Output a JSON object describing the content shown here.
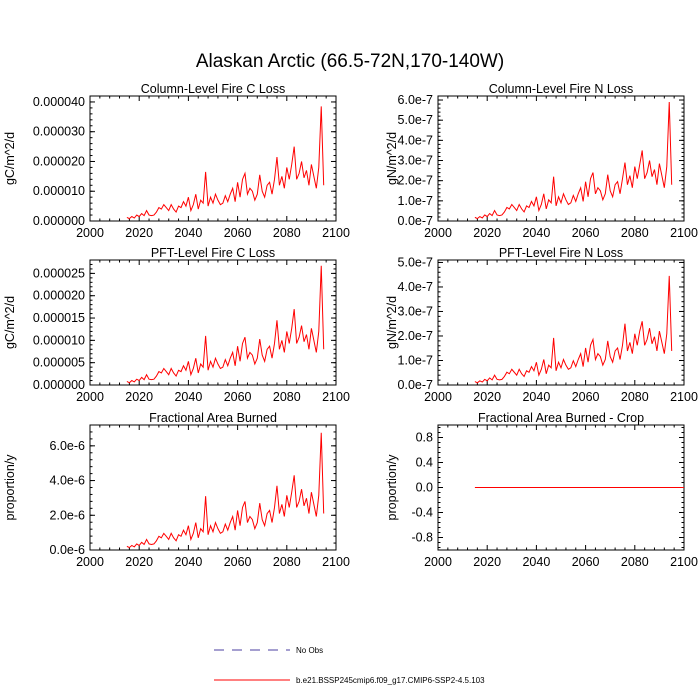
{
  "figure": {
    "title": "Alaskan Arctic (66.5-72N,170-140W)"
  },
  "colors": {
    "model": "#ff0000",
    "obs": "#4b3fa0",
    "axis": "#000000"
  },
  "legend": [
    {
      "label": "No Obs",
      "style": "dashed",
      "color": "#4b3fa0"
    },
    {
      "label": "b.e21.BSSP245cmip6.f09_g17.CMIP6-SSP2-4.5.103",
      "style": "solid",
      "color": "#ff0000"
    }
  ],
  "chart_data": [
    {
      "type": "line",
      "title": "Column-Level Fire C Loss",
      "ylabel": "gC/m^2/d",
      "xlim": [
        2000,
        2100
      ],
      "ylim": [
        0,
        4.2e-05
      ],
      "x_ticks": [
        "2000",
        "2020",
        "2040",
        "2060",
        "2080",
        "2100"
      ],
      "y_ticks": [
        {
          "value": 0,
          "label": "0.000000"
        },
        {
          "value": 1e-05,
          "label": "0.000010"
        },
        {
          "value": 2e-05,
          "label": "0.000020"
        },
        {
          "value": 3e-05,
          "label": "0.000030"
        },
        {
          "value": 4e-05,
          "label": "0.000040"
        }
      ],
      "series": [
        {
          "name": "b.e21.BSSP245cmip6.f09_g17.CMIP6-SSP2-4.5.103",
          "x_start": 2015,
          "x_step": 1,
          "values": [
            1.2e-06,
            8e-07,
            1.5e-06,
            1e-06,
            2e-06,
            1.5e-06,
            2.5e-06,
            1.8e-06,
            3.5e-06,
            2e-06,
            1.8e-06,
            2e-06,
            3e-06,
            4.5e-06,
            4e-06,
            5.5e-06,
            4.5e-06,
            3.5e-06,
            5.5e-06,
            4e-06,
            3e-06,
            5e-06,
            4.5e-06,
            6.5e-06,
            5e-06,
            8e-06,
            3.5e-06,
            5.5e-06,
            9e-06,
            4e-06,
            7e-06,
            6e-06,
            1.65e-05,
            5e-06,
            8e-06,
            6e-06,
            9e-06,
            7e-06,
            5.5e-06,
            6e-06,
            8.5e-06,
            6.5e-06,
            9e-06,
            1.1e-05,
            6.5e-06,
            1.3e-05,
            8e-06,
            1.4e-05,
            1.6e-05,
            9e-06,
            1.1e-05,
            1e-05,
            7e-06,
            9e-06,
            1.55e-05,
            1e-05,
            8e-06,
            1.2e-05,
            1.3e-05,
            9e-06,
            1.4e-05,
            2.15e-05,
            1.2e-05,
            1.5e-05,
            1.1e-05,
            1.8e-05,
            1.4e-05,
            1.9e-05,
            2.5e-05,
            1.4e-05,
            1.6e-05,
            2e-05,
            1.45e-05,
            1.7e-05,
            1.2e-05,
            1.9e-05,
            1.5e-05,
            1.1e-05,
            1.8e-05,
            3.85e-05,
            1.2e-05
          ]
        }
      ]
    },
    {
      "type": "line",
      "title": "Column-Level Fire N Loss",
      "ylabel": "gN/m^2/d",
      "xlim": [
        2000,
        2100
      ],
      "ylim": [
        0,
        6.2e-07
      ],
      "x_ticks": [
        "2000",
        "2020",
        "2040",
        "2060",
        "2080",
        "2100"
      ],
      "y_ticks": [
        {
          "value": 0,
          "label": "0.0e-7"
        },
        {
          "value": 1e-07,
          "label": "1.0e-7"
        },
        {
          "value": 2e-07,
          "label": "2.0e-7"
        },
        {
          "value": 3e-07,
          "label": "3.0e-7"
        },
        {
          "value": 4e-07,
          "label": "4.0e-7"
        },
        {
          "value": 5e-07,
          "label": "5.0e-7"
        },
        {
          "value": 6e-07,
          "label": "6.0e-7"
        }
      ],
      "series": [
        {
          "name": "b.e21.BSSP245cmip6.f09_g17.CMIP6-SSP2-4.5.103",
          "x_start": 2015,
          "x_step": 1,
          "values": [
            1.8e-08,
            1.2e-08,
            2.2e-08,
            1.5e-08,
            3e-08,
            2.2e-08,
            3.7e-08,
            2.7e-08,
            5.2e-08,
            3e-08,
            2.7e-08,
            3e-08,
            4.5e-08,
            6.7e-08,
            6e-08,
            8.2e-08,
            6.7e-08,
            5.2e-08,
            8.2e-08,
            6e-08,
            4.5e-08,
            7.5e-08,
            6.7e-08,
            9.7e-08,
            7.5e-08,
            1.2e-07,
            5.2e-08,
            8.2e-08,
            1.35e-07,
            6e-08,
            1.05e-07,
            9e-08,
            2.2e-07,
            7.5e-08,
            1.2e-07,
            9e-08,
            1.35e-07,
            1.05e-07,
            8.2e-08,
            9e-08,
            1.27e-07,
            9.7e-08,
            1.35e-07,
            1.65e-07,
            9.7e-08,
            1.95e-07,
            1.2e-07,
            2.1e-07,
            2.4e-07,
            1.35e-07,
            1.65e-07,
            1.5e-07,
            1.05e-07,
            1.35e-07,
            2.3e-07,
            1.5e-07,
            1.2e-07,
            1.8e-07,
            1.95e-07,
            1.35e-07,
            2.1e-07,
            2.9e-07,
            1.8e-07,
            2.25e-07,
            1.65e-07,
            2.7e-07,
            2.1e-07,
            2.8e-07,
            3.5e-07,
            2.1e-07,
            2.4e-07,
            3e-07,
            2.2e-07,
            2.55e-07,
            1.8e-07,
            2.85e-07,
            2.25e-07,
            1.65e-07,
            2.7e-07,
            5.9e-07,
            1.8e-07
          ]
        }
      ]
    },
    {
      "type": "line",
      "title": "PFT-Level Fire C Loss",
      "ylabel": "gC/m^2/d",
      "xlim": [
        2000,
        2100
      ],
      "ylim": [
        0,
        2.8e-05
      ],
      "x_ticks": [
        "2000",
        "2020",
        "2040",
        "2060",
        "2080",
        "2100"
      ],
      "y_ticks": [
        {
          "value": 0,
          "label": "0.000000"
        },
        {
          "value": 5e-06,
          "label": "0.000005"
        },
        {
          "value": 1e-05,
          "label": "0.000010"
        },
        {
          "value": 1.5e-05,
          "label": "0.000015"
        },
        {
          "value": 2e-05,
          "label": "0.000020"
        },
        {
          "value": 2.5e-05,
          "label": "0.000025"
        }
      ],
      "series": [
        {
          "name": "b.e21.BSSP245cmip6.f09_g17.CMIP6-SSP2-4.5.103",
          "x_start": 2015,
          "x_step": 1,
          "values": [
            8e-07,
            5e-07,
            1e-06,
            7e-07,
            1.3e-06,
            1e-06,
            1.7e-06,
            1.2e-06,
            2.3e-06,
            1.3e-06,
            1.2e-06,
            1.3e-06,
            2e-06,
            3e-06,
            2.7e-06,
            3.7e-06,
            3e-06,
            2.3e-06,
            3.7e-06,
            2.7e-06,
            2e-06,
            3.3e-06,
            3e-06,
            4.3e-06,
            3.3e-06,
            5.3e-06,
            2.3e-06,
            3.7e-06,
            6e-06,
            2.7e-06,
            4.7e-06,
            4e-06,
            1.1e-05,
            3.3e-06,
            5.3e-06,
            4e-06,
            6e-06,
            4.7e-06,
            3.7e-06,
            4e-06,
            5.7e-06,
            4.3e-06,
            6e-06,
            7.3e-06,
            4.3e-06,
            8.7e-06,
            5.3e-06,
            9.3e-06,
            1.07e-05,
            6e-06,
            7.3e-06,
            6.7e-06,
            4.7e-06,
            6e-06,
            1.03e-05,
            6.7e-06,
            5.3e-06,
            8e-06,
            8.7e-06,
            6e-06,
            9.3e-06,
            1.45e-05,
            8e-06,
            1e-05,
            7.3e-06,
            1.2e-05,
            9.3e-06,
            1.27e-05,
            1.7e-05,
            9.3e-06,
            1.07e-05,
            1.33e-05,
            9.7e-06,
            1.13e-05,
            8e-06,
            1.27e-05,
            1e-05,
            7.3e-06,
            1.2e-05,
            2.67e-05,
            8e-06
          ]
        }
      ]
    },
    {
      "type": "line",
      "title": "PFT-Level Fire N Loss",
      "ylabel": "gN/m^2/d",
      "xlim": [
        2000,
        2100
      ],
      "ylim": [
        0,
        5.1e-07
      ],
      "x_ticks": [
        "2000",
        "2020",
        "2040",
        "2060",
        "2080",
        "2100"
      ],
      "y_ticks": [
        {
          "value": 0,
          "label": "0.0e-7"
        },
        {
          "value": 1e-07,
          "label": "1.0e-7"
        },
        {
          "value": 2e-07,
          "label": "2.0e-7"
        },
        {
          "value": 3e-07,
          "label": "3.0e-7"
        },
        {
          "value": 4e-07,
          "label": "4.0e-7"
        },
        {
          "value": 5e-07,
          "label": "5.0e-7"
        }
      ],
      "series": [
        {
          "name": "b.e21.BSSP245cmip6.f09_g17.CMIP6-SSP2-4.5.103",
          "x_start": 2015,
          "x_step": 1,
          "values": [
            1.4e-08,
            9e-09,
            1.7e-08,
            1.2e-08,
            2.3e-08,
            1.7e-08,
            2.9e-08,
            2.1e-08,
            4e-08,
            2.3e-08,
            2.1e-08,
            2.3e-08,
            3.5e-08,
            5.2e-08,
            4.6e-08,
            6.4e-08,
            5.2e-08,
            4e-08,
            6.4e-08,
            4.6e-08,
            3.5e-08,
            5.8e-08,
            5.2e-08,
            7.5e-08,
            5.8e-08,
            9.3e-08,
            4e-08,
            6.4e-08,
            1.04e-07,
            4.6e-08,
            8.1e-08,
            7e-08,
            1.92e-07,
            5.8e-08,
            9.3e-08,
            7e-08,
            1.04e-07,
            8.1e-08,
            6.4e-08,
            7e-08,
            9.9e-08,
            7.5e-08,
            1.04e-07,
            1.28e-07,
            7.5e-08,
            1.51e-07,
            9.3e-08,
            1.62e-07,
            1.86e-07,
            1.04e-07,
            1.28e-07,
            1.16e-07,
            8.1e-08,
            1.04e-07,
            1.8e-07,
            1.16e-07,
            9.3e-08,
            1.39e-07,
            1.51e-07,
            1.04e-07,
            1.62e-07,
            2.5e-07,
            1.39e-07,
            1.74e-07,
            1.28e-07,
            2.09e-07,
            1.62e-07,
            2.2e-07,
            2.6e-07,
            1.62e-07,
            1.86e-07,
            2.32e-07,
            1.68e-07,
            1.97e-07,
            1.39e-07,
            2.2e-07,
            1.74e-07,
            1.28e-07,
            2.09e-07,
            4.45e-07,
            1.39e-07
          ]
        }
      ]
    },
    {
      "type": "line",
      "title": "Fractional Area Burned",
      "ylabel": "proportion/y",
      "xlim": [
        2000,
        2100
      ],
      "ylim": [
        0,
        7.2e-06
      ],
      "x_ticks": [
        "2000",
        "2020",
        "2040",
        "2060",
        "2080",
        "2100"
      ],
      "y_ticks": [
        {
          "value": 0,
          "label": "0.0e-6"
        },
        {
          "value": 2e-06,
          "label": "2.0e-6"
        },
        {
          "value": 4e-06,
          "label": "4.0e-6"
        },
        {
          "value": 6e-06,
          "label": "6.0e-6"
        }
      ],
      "series": [
        {
          "name": "b.e21.BSSP245cmip6.f09_g17.CMIP6-SSP2-4.5.103",
          "x_start": 2015,
          "x_step": 1,
          "values": [
            2.1e-07,
            1.4e-07,
            2.6e-07,
            1.8e-07,
            3.5e-07,
            2.6e-07,
            4.4e-07,
            3.2e-07,
            6.1e-07,
            3.5e-07,
            3.2e-07,
            3.5e-07,
            5.3e-07,
            7.9e-07,
            7e-07,
            9.6e-07,
            7.9e-07,
            6.1e-07,
            9.6e-07,
            7e-07,
            5.3e-07,
            8.8e-07,
            7.9e-07,
            1.14e-06,
            8.8e-07,
            1.4e-06,
            6.1e-07,
            9.6e-07,
            1.58e-06,
            7e-07,
            1.23e-06,
            1.05e-06,
            3.1e-06,
            8.8e-07,
            1.4e-06,
            1.05e-06,
            1.58e-06,
            1.23e-06,
            9.6e-07,
            1.05e-06,
            1.49e-06,
            1.14e-06,
            1.58e-06,
            1.93e-06,
            1.14e-06,
            2.28e-06,
            1.4e-06,
            2.45e-06,
            2.8e-06,
            1.58e-06,
            1.93e-06,
            1.75e-06,
            1.23e-06,
            1.58e-06,
            2.7e-06,
            1.75e-06,
            1.4e-06,
            2.1e-06,
            2.28e-06,
            1.58e-06,
            2.45e-06,
            3.7e-06,
            2.1e-06,
            2.63e-06,
            1.93e-06,
            3.15e-06,
            2.45e-06,
            3.33e-06,
            4.3e-06,
            2.45e-06,
            2.8e-06,
            3.5e-06,
            2.54e-06,
            2.98e-06,
            2.1e-06,
            3.33e-06,
            2.63e-06,
            1.93e-06,
            3.15e-06,
            6.75e-06,
            2.1e-06
          ]
        }
      ]
    },
    {
      "type": "line",
      "title": "Fractional Area Burned - Crop",
      "ylabel": "proportion/y",
      "xlim": [
        2000,
        2100
      ],
      "ylim": [
        -1.0,
        1.0
      ],
      "x_ticks": [
        "2000",
        "2020",
        "2040",
        "2060",
        "2080",
        "2100"
      ],
      "y_ticks": [
        {
          "value": -0.8,
          "label": "-0.8"
        },
        {
          "value": -0.4,
          "label": "-0.4"
        },
        {
          "value": 0.0,
          "label": "0.0"
        },
        {
          "value": 0.4,
          "label": "0.4"
        },
        {
          "value": 0.8,
          "label": "0.8"
        }
      ],
      "series": [
        {
          "name": "b.e21.BSSP245cmip6.f09_g17.CMIP6-SSP2-4.5.103",
          "x_start": 2015,
          "x_step": 85,
          "values": [
            0,
            0
          ]
        }
      ]
    }
  ]
}
